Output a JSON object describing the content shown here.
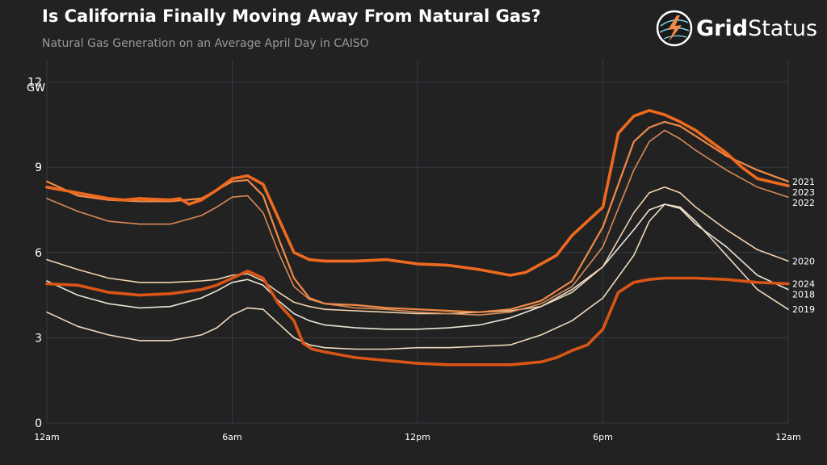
{
  "header": {
    "title": "Is California Finally Moving Away From Natural Gas?",
    "subtitle": "Natural Gas Generation on an Average April Day in CAISO"
  },
  "logo": {
    "bold": "Grid",
    "light": "Status",
    "icon": "grid-status-lightning-globe"
  },
  "chart_data": {
    "type": "line",
    "title": "Is California Finally Moving Away From Natural Gas?",
    "subtitle": "Natural Gas Generation on an Average April Day in CAISO",
    "y_unit": "GW",
    "ylim": [
      0,
      12.5
    ],
    "yticks": [
      0,
      3,
      6,
      9,
      12
    ],
    "xlim": [
      0,
      24
    ],
    "xticks": [
      {
        "value": 0,
        "label": "12am"
      },
      {
        "value": 6,
        "label": "6am"
      },
      {
        "value": 12,
        "label": "12pm"
      },
      {
        "value": 18,
        "label": "6pm"
      },
      {
        "value": 24,
        "label": "12am"
      }
    ],
    "grid": true,
    "legend": "inline labels at right end of lines",
    "series": [
      {
        "name": "2018",
        "color": "#ece3d6",
        "width": 1.6,
        "x": [
          0,
          1,
          2,
          3,
          4,
          5,
          5.5,
          6,
          6.5,
          7,
          7.5,
          8,
          8.5,
          9,
          10,
          11,
          12,
          13,
          14,
          15,
          16,
          17,
          18,
          19,
          19.5,
          20,
          20.5,
          21,
          22,
          23,
          24
        ],
        "y": [
          5.0,
          4.5,
          4.2,
          4.05,
          4.1,
          4.4,
          4.65,
          4.95,
          5.05,
          4.85,
          4.3,
          3.85,
          3.6,
          3.45,
          3.35,
          3.3,
          3.3,
          3.35,
          3.45,
          3.7,
          4.1,
          4.7,
          5.5,
          6.8,
          7.5,
          7.7,
          7.55,
          7.0,
          6.2,
          5.2,
          4.7
        ]
      },
      {
        "name": "2019",
        "color": "#f0dbbd",
        "width": 1.6,
        "x": [
          0,
          1,
          2,
          3,
          4,
          5,
          5.5,
          6,
          6.5,
          7,
          7.5,
          8,
          8.5,
          9,
          10,
          11,
          12,
          13,
          14,
          15,
          16,
          17,
          18,
          19,
          19.5,
          20,
          20.5,
          21,
          22,
          23,
          24
        ],
        "y": [
          3.9,
          3.4,
          3.1,
          2.9,
          2.9,
          3.1,
          3.35,
          3.8,
          4.05,
          4.0,
          3.5,
          3.0,
          2.75,
          2.65,
          2.6,
          2.6,
          2.65,
          2.65,
          2.7,
          2.75,
          3.1,
          3.6,
          4.4,
          5.9,
          7.1,
          7.7,
          7.6,
          7.1,
          5.9,
          4.7,
          4.0
        ]
      },
      {
        "name": "2020",
        "color": "#f1d2ae",
        "width": 1.6,
        "x": [
          0,
          1,
          2,
          3,
          4,
          5,
          5.5,
          6,
          6.5,
          7,
          7.5,
          8,
          8.5,
          9,
          10,
          11,
          12,
          13,
          14,
          15,
          16,
          17,
          18,
          19,
          19.5,
          20,
          20.5,
          21,
          22,
          23,
          24
        ],
        "y": [
          5.75,
          5.4,
          5.1,
          4.95,
          4.95,
          5.0,
          5.05,
          5.2,
          5.25,
          5.0,
          4.6,
          4.25,
          4.1,
          4.0,
          3.95,
          3.9,
          3.85,
          3.85,
          3.9,
          3.95,
          4.1,
          4.6,
          5.5,
          7.4,
          8.1,
          8.3,
          8.1,
          7.6,
          6.8,
          6.1,
          5.7
        ]
      },
      {
        "name": "2021",
        "color": "#f08a48",
        "width": 2.2,
        "x": [
          0,
          1,
          2,
          3,
          4,
          5,
          5.5,
          6,
          6.5,
          7,
          7.5,
          8,
          8.5,
          9,
          10,
          11,
          12,
          13,
          14,
          15,
          16,
          17,
          18,
          19,
          19.5,
          20,
          20.5,
          21,
          22,
          23,
          24
        ],
        "y": [
          8.5,
          8.0,
          7.85,
          7.8,
          7.8,
          7.9,
          8.2,
          8.5,
          8.55,
          8.0,
          6.5,
          5.1,
          4.4,
          4.2,
          4.15,
          4.05,
          4.0,
          3.95,
          3.9,
          4.0,
          4.3,
          5.0,
          6.9,
          9.9,
          10.4,
          10.6,
          10.45,
          10.1,
          9.4,
          8.9,
          8.5
        ]
      },
      {
        "name": "2022",
        "color": "#d98a55",
        "width": 1.6,
        "x": [
          0,
          1,
          2,
          3,
          4,
          5,
          5.5,
          6,
          6.5,
          7,
          7.5,
          8,
          8.5,
          9,
          10,
          11,
          12,
          13,
          14,
          15,
          16,
          17,
          18,
          19,
          19.5,
          20,
          20.5,
          21,
          22,
          23,
          24
        ],
        "y": [
          7.9,
          7.45,
          7.1,
          7.0,
          7.0,
          7.3,
          7.6,
          7.95,
          8.0,
          7.4,
          6.0,
          4.8,
          4.35,
          4.2,
          4.05,
          4.0,
          3.9,
          3.85,
          3.8,
          3.9,
          4.2,
          4.8,
          6.2,
          8.9,
          9.9,
          10.3,
          10.0,
          9.6,
          8.9,
          8.3,
          7.95
        ]
      },
      {
        "name": "2023",
        "color": "#ef6a1e",
        "width": 3.6,
        "x": [
          0,
          0.5,
          1,
          2,
          2.5,
          3,
          4,
          4.3,
          4.6,
          5,
          5.5,
          6,
          6.5,
          7,
          7.5,
          8,
          8.5,
          9,
          10,
          11,
          12,
          13,
          14,
          15,
          15.5,
          16,
          16.5,
          17,
          17.5,
          18,
          18.5,
          19,
          19.5,
          20,
          20.5,
          21,
          21.5,
          22,
          22.5,
          23,
          24
        ],
        "y": [
          8.3,
          8.2,
          8.1,
          7.9,
          7.85,
          7.9,
          7.85,
          7.9,
          7.7,
          7.85,
          8.2,
          8.6,
          8.7,
          8.4,
          7.2,
          6.0,
          5.75,
          5.7,
          5.7,
          5.75,
          5.6,
          5.55,
          5.4,
          5.2,
          5.3,
          5.6,
          5.9,
          6.6,
          7.1,
          7.6,
          10.2,
          10.8,
          11.0,
          10.85,
          10.6,
          10.3,
          9.9,
          9.5,
          9.0,
          8.6,
          8.35
        ]
      },
      {
        "name": "2024",
        "color": "#d95516",
        "width": 3.6,
        "x": [
          0,
          1,
          2,
          3,
          4,
          5,
          5.5,
          6,
          6.5,
          7,
          7.5,
          8,
          8.3,
          8.6,
          9,
          10,
          11,
          12,
          13,
          14,
          15,
          16,
          16.5,
          17,
          17.5,
          18,
          18.5,
          19,
          19.5,
          20,
          21,
          22,
          23,
          24
        ],
        "y": [
          4.9,
          4.85,
          4.6,
          4.5,
          4.55,
          4.7,
          4.85,
          5.1,
          5.35,
          5.1,
          4.2,
          3.6,
          2.8,
          2.6,
          2.5,
          2.3,
          2.2,
          2.1,
          2.05,
          2.05,
          2.05,
          2.15,
          2.3,
          2.55,
          2.75,
          3.3,
          4.6,
          4.95,
          5.05,
          5.1,
          5.1,
          5.05,
          4.95,
          4.9
        ]
      }
    ],
    "label_order": [
      "2021",
      "2023",
      "2022",
      "2020",
      "2024",
      "2018",
      "2019"
    ]
  }
}
